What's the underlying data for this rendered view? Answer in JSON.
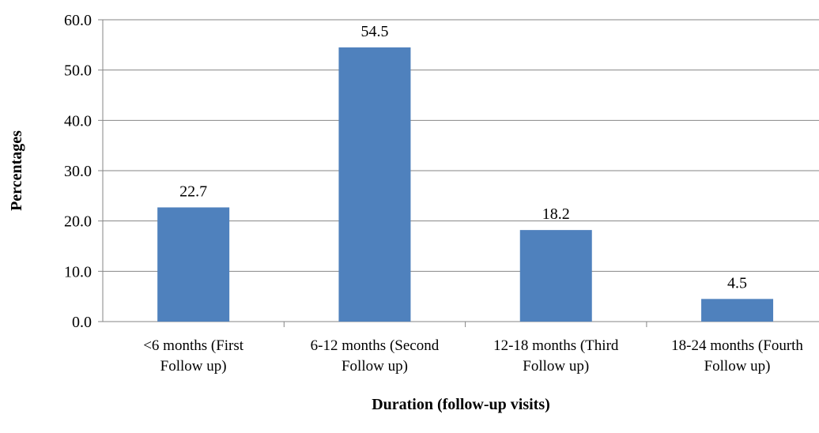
{
  "chart_data": {
    "type": "bar",
    "title": "",
    "xlabel": "Duration (follow-up visits)",
    "ylabel": "Percentages",
    "categories": [
      [
        "<6 months (First",
        "Follow up)"
      ],
      [
        "6-12 months (Second",
        "Follow up)"
      ],
      [
        "12-18 months (Third",
        "Follow up)"
      ],
      [
        "18-24 months (Fourth",
        "Follow up)"
      ]
    ],
    "values": [
      22.7,
      54.5,
      18.2,
      4.5
    ],
    "data_labels": [
      "22.7",
      "54.5",
      "18.2",
      "4.5"
    ],
    "ylim": [
      0,
      60
    ],
    "yticks": [
      "0.0",
      "10.0",
      "20.0",
      "30.0",
      "40.0",
      "50.0",
      "60.0"
    ],
    "grid": true,
    "legend": "none",
    "bar_color": "#4F81BD",
    "grid_color": "#868686"
  }
}
